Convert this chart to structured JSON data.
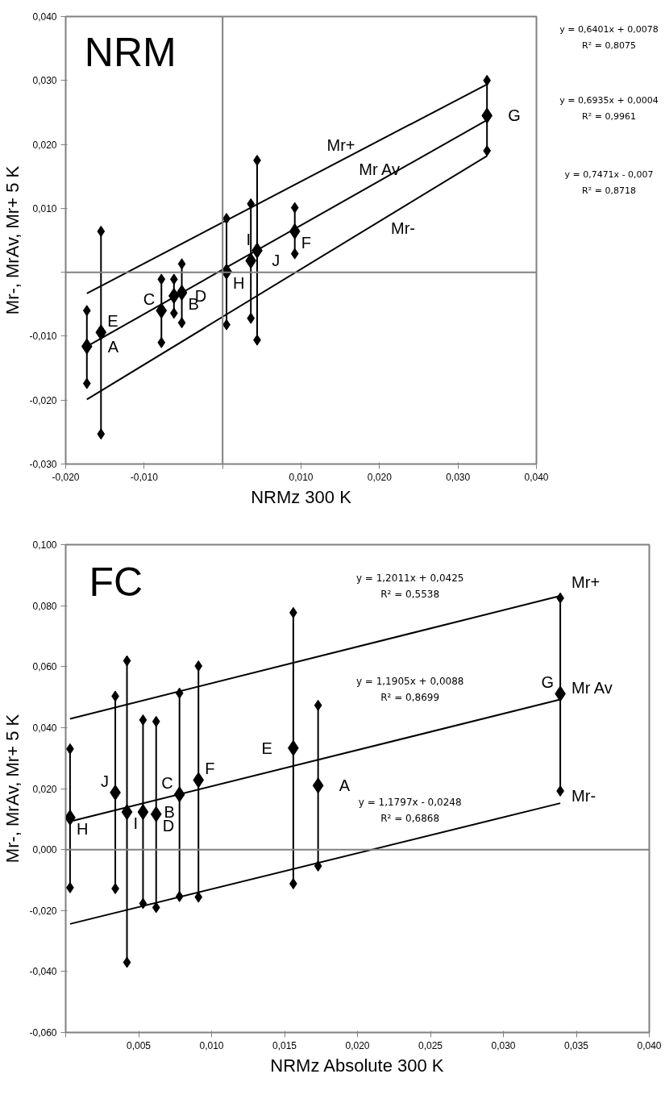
{
  "chart_data": [
    {
      "type": "scatter",
      "title": "NRM",
      "xlabel": "NRMz 300 K",
      "ylabel": "Mr-, MrAv, Mr+ 5 K",
      "marker": "diamond",
      "xlim": [
        -0.02,
        0.04
      ],
      "ylim": [
        -0.03,
        0.04
      ],
      "xticks": [
        {
          "value": -0.02,
          "label": "-0,020"
        },
        {
          "value": -0.01,
          "label": "-0,010"
        },
        {
          "value": 0,
          "label": null
        },
        {
          "value": 0.01,
          "label": "0,010"
        },
        {
          "value": 0.02,
          "label": "0,020"
        },
        {
          "value": 0.03,
          "label": "0,030"
        },
        {
          "value": 0.04,
          "label": "0,040"
        }
      ],
      "yticks": [
        {
          "value": -0.03,
          "label": "-0,030"
        },
        {
          "value": -0.02,
          "label": "-0,020"
        },
        {
          "value": -0.01,
          "label": "-0,010"
        },
        {
          "value": 0,
          "label": null
        },
        {
          "value": 0.01,
          "label": "0,010"
        },
        {
          "value": 0.02,
          "label": "0,020"
        },
        {
          "value": 0.03,
          "label": "0,030"
        },
        {
          "value": 0.04,
          "label": "0,040"
        }
      ],
      "ref_lines": [
        {
          "axis": "x",
          "value": 0,
          "label": null,
          "color": "#808080"
        },
        {
          "axis": "y",
          "value": 0,
          "label": null,
          "color": "#808080"
        }
      ],
      "series": [
        {
          "type": "scatter",
          "color": "#000000",
          "x": [
            -0.0173,
            -0.0155,
            -0.0078,
            -0.0062,
            -0.0052,
            0.0005,
            0.0036,
            0.0044,
            0.0092,
            0.0337
          ],
          "values": [
            -0.0116,
            -0.0094,
            -0.006,
            -0.0037,
            -0.0032,
            0.0001,
            0.0018,
            0.0034,
            0.0064,
            0.0245
          ],
          "errors": [
            [
              -0.0174,
              -0.006
            ],
            [
              -0.0253,
              0.0064
            ],
            [
              -0.011,
              -0.0011
            ],
            [
              -0.0064,
              -0.0011
            ],
            [
              -0.0079,
              0.0013
            ],
            [
              -0.0082,
              0.0084
            ],
            [
              -0.0072,
              0.0107
            ],
            [
              -0.0106,
              0.0175
            ],
            [
              0.0029,
              0.0101
            ],
            [
              0.019,
              0.03
            ]
          ]
        },
        {
          "color": "#000000",
          "x": [
            -0.0173,
            -0.0155,
            -0.0078,
            -0.0062,
            -0.0052,
            0.0005,
            0.0036,
            0.0044,
            0.0092,
            0.0337
          ],
          "values": [
            -0.006,
            0.0064,
            -0.0011,
            -0.0011,
            0.0013,
            0.0084,
            0.0107,
            0.0175,
            0.0101,
            0.03
          ]
        },
        {
          "color": "#000000",
          "x": [
            -0.0173,
            -0.0155,
            -0.0078,
            -0.0062,
            -0.0052,
            0.0005,
            0.0036,
            0.0044,
            0.0092,
            0.0337
          ],
          "values": [
            -0.0174,
            -0.0253,
            -0.011,
            -0.0064,
            -0.0079,
            -0.0082,
            -0.0072,
            -0.0106,
            0.0029,
            0.019
          ]
        },
        {
          "type": "line",
          "marker": "none",
          "name": "Mr+",
          "color": "#000000",
          "x": [
            -0.0173,
            0.0337
          ],
          "values": [
            -0.0033,
            0.0294
          ]
        },
        {
          "type": "line",
          "marker": "none",
          "name": "Mr Av",
          "color": "#000000",
          "x": [
            -0.0173,
            0.0337
          ],
          "values": [
            -0.0116,
            0.0238
          ]
        },
        {
          "type": "line",
          "marker": "none",
          "name": "Mr-",
          "color": "#000000",
          "x": [
            -0.0173,
            0.0337
          ],
          "values": [
            -0.0199,
            0.0182
          ]
        }
      ],
      "annotations": [
        "y = 0,6401x + 0,0078",
        "R² = 0,8075",
        "y = 0,6935x + 0,0004",
        "R² = 0,9961",
        "y = 0,7471x - 0,007",
        "R² = 0,8718",
        {
          "text": "A",
          "x": -0.0173,
          "y": -0.0116
        },
        {
          "text": "E",
          "x": -0.0155,
          "y": -0.0094
        },
        {
          "text": "C",
          "x": -0.0078,
          "y": -0.006
        },
        {
          "text": "D",
          "x": -0.0062,
          "y": -0.0037
        },
        {
          "text": "B",
          "x": -0.0052,
          "y": -0.0032
        },
        {
          "text": "H",
          "x": 0.0005,
          "y": 0.0001
        },
        {
          "text": "J",
          "x": 0.0036,
          "y": 0.0018
        },
        {
          "text": "I",
          "x": 0.0044,
          "y": 0.0034
        },
        {
          "text": "F",
          "x": 0.0092,
          "y": 0.0064
        },
        {
          "text": "G",
          "x": 0.0337,
          "y": 0.0245
        }
      ]
    },
    {
      "type": "scatter",
      "title": "FC",
      "xlabel": "NRMz Absolute 300 K",
      "ylabel": "Mr-, MrAv, Mr+ 5 K",
      "marker": "diamond",
      "xlim": [
        0,
        0.04
      ],
      "ylim": [
        -0.06,
        0.1
      ],
      "xticks": [
        {
          "value": 0,
          "label": null
        },
        {
          "value": 0.005,
          "label": "0,005"
        },
        {
          "value": 0.01,
          "label": "0,010"
        },
        {
          "value": 0.015,
          "label": "0,015"
        },
        {
          "value": 0.02,
          "label": "0,020"
        },
        {
          "value": 0.025,
          "label": "0,025"
        },
        {
          "value": 0.03,
          "label": "0,030"
        },
        {
          "value": 0.035,
          "label": "0,035"
        },
        {
          "value": 0.04,
          "label": "0,040"
        }
      ],
      "yticks": [
        {
          "value": -0.06,
          "label": "-0,060"
        },
        {
          "value": -0.04,
          "label": "-0,040"
        },
        {
          "value": -0.02,
          "label": "-0,020"
        },
        {
          "value": 0,
          "label": "0,000"
        },
        {
          "value": 0.02,
          "label": "0,020"
        },
        {
          "value": 0.04,
          "label": "0,040"
        },
        {
          "value": 0.06,
          "label": "0,060"
        },
        {
          "value": 0.08,
          "label": "0,080"
        },
        {
          "value": 0.1,
          "label": "0,100"
        }
      ],
      "ref_lines": [
        {
          "axis": "y",
          "value": 0,
          "label": null,
          "color": "#808080"
        }
      ],
      "series": [
        {
          "type": "scatter",
          "color": "#000000",
          "x": [
            0.0003,
            0.0034,
            0.0042,
            0.0053,
            0.0062,
            0.0078,
            0.0091,
            0.0156,
            0.0173,
            0.0339
          ],
          "values": [
            0.0105,
            0.0187,
            0.0123,
            0.0123,
            0.0116,
            0.0181,
            0.0228,
            0.0333,
            0.021,
            0.0511
          ],
          "errors": [
            [
              -0.0125,
              0.033
            ],
            [
              -0.0128,
              0.0503
            ],
            [
              -0.037,
              0.0619
            ],
            [
              -0.0177,
              0.0425
            ],
            [
              -0.019,
              0.042
            ],
            [
              -0.0154,
              0.0513
            ],
            [
              -0.0156,
              0.0602
            ],
            [
              -0.0112,
              0.0777
            ],
            [
              -0.0054,
              0.0473
            ],
            [
              0.0192,
              0.0825
            ]
          ]
        },
        {
          "color": "#000000",
          "x": [
            0.0003,
            0.0034,
            0.0042,
            0.0053,
            0.0062,
            0.0078,
            0.0091,
            0.0156,
            0.0173,
            0.0339
          ],
          "values": [
            0.033,
            0.0503,
            0.0619,
            0.0425,
            0.042,
            0.0513,
            0.0602,
            0.0777,
            0.0473,
            0.0825
          ]
        },
        {
          "color": "#000000",
          "x": [
            0.0003,
            0.0034,
            0.0042,
            0.0053,
            0.0062,
            0.0078,
            0.0091,
            0.0156,
            0.0173,
            0.0339
          ],
          "values": [
            -0.0125,
            -0.0128,
            -0.037,
            -0.0177,
            -0.019,
            -0.0154,
            -0.0156,
            -0.0112,
            -0.0054,
            0.0192
          ]
        },
        {
          "type": "line",
          "marker": "none",
          "name": "Mr+",
          "color": "#000000",
          "x": [
            0.0003,
            0.0339
          ],
          "values": [
            0.0429,
            0.0832
          ]
        },
        {
          "type": "line",
          "marker": "none",
          "name": "Mr Av",
          "color": "#000000",
          "x": [
            0.0003,
            0.0339
          ],
          "values": [
            0.0092,
            0.0492
          ]
        },
        {
          "type": "line",
          "marker": "none",
          "name": "Mr-",
          "color": "#000000",
          "x": [
            0.0003,
            0.0339
          ],
          "values": [
            -0.0244,
            0.0152
          ]
        }
      ],
      "annotations": [
        "y = 1,2011x + 0,0425",
        "R² = 0,5538",
        "y = 1,1905x + 0,0088",
        "R² = 0,8699",
        "y = 1,1797x - 0,0248",
        "R² = 0,6868",
        {
          "text": "H",
          "x": 0.0003,
          "y": 0.0105
        },
        {
          "text": "J",
          "x": 0.0034,
          "y": 0.0187
        },
        {
          "text": "I",
          "x": 0.0042,
          "y": 0.0123
        },
        {
          "text": "B",
          "x": 0.0053,
          "y": 0.0123
        },
        {
          "text": "D",
          "x": 0.0062,
          "y": 0.0116
        },
        {
          "text": "C",
          "x": 0.0078,
          "y": 0.0181
        },
        {
          "text": "F",
          "x": 0.0091,
          "y": 0.0228
        },
        {
          "text": "E",
          "x": 0.0156,
          "y": 0.0333
        },
        {
          "text": "A",
          "x": 0.0173,
          "y": 0.021
        },
        {
          "text": "G",
          "x": 0.0339,
          "y": 0.0511
        }
      ]
    }
  ]
}
